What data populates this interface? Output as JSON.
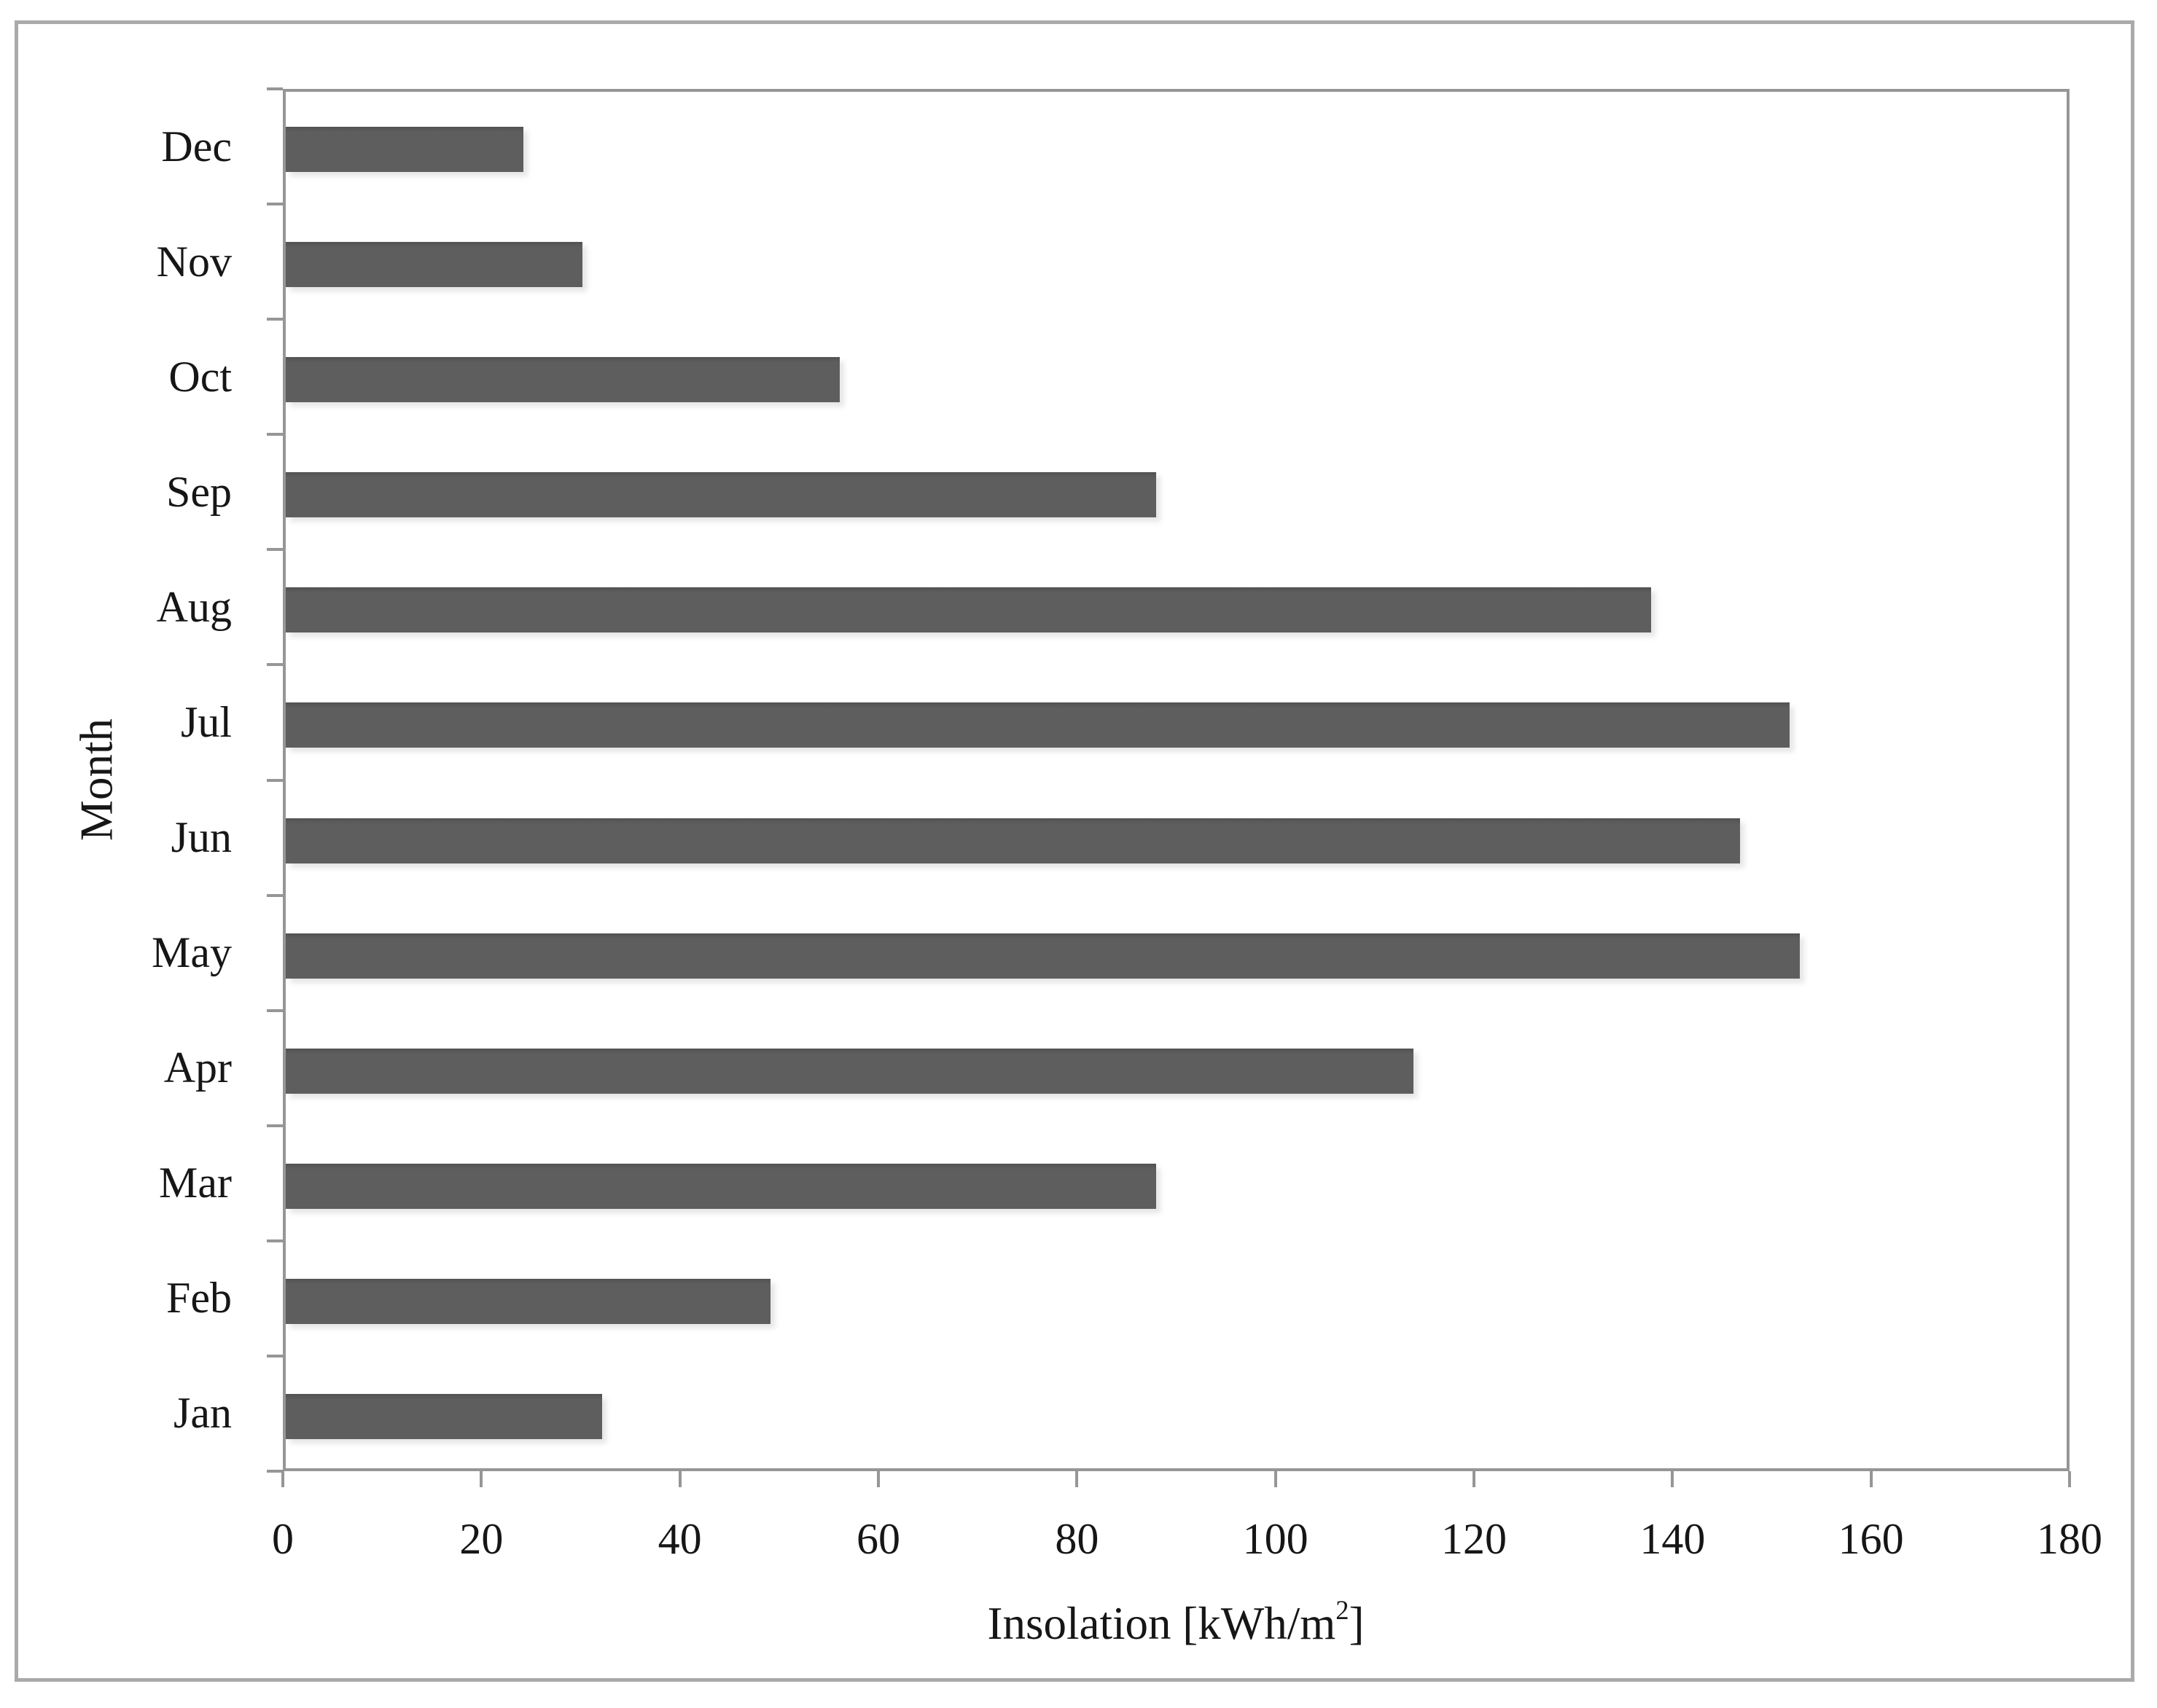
{
  "figure": {
    "background": "#ffffff",
    "border_color": "#aaaaaa"
  },
  "chart_data": {
    "type": "bar",
    "orientation": "horizontal",
    "title": "",
    "categories": [
      "Jan",
      "Feb",
      "Mar",
      "Apr",
      "May",
      "Jun",
      "Jul",
      "Aug",
      "Sep",
      "Oct",
      "Nov",
      "Dec"
    ],
    "values": [
      32,
      49,
      88,
      114,
      153,
      147,
      152,
      138,
      88,
      56,
      30,
      24
    ],
    "row_order_top_to_bottom": [
      "Dec",
      "Nov",
      "Oct",
      "Sep",
      "Aug",
      "Jul",
      "Jun",
      "May",
      "Apr",
      "Mar",
      "Feb",
      "Jan"
    ],
    "xlabel_text": "Insolation [kWh/m",
    "xlabel_sup": "2",
    "xlabel_close": "]",
    "xlabel_full": "Insolation [kWh/m²]",
    "ylabel": "Month",
    "xlim": [
      0,
      180
    ],
    "xticks": [
      0,
      20,
      40,
      60,
      80,
      100,
      120,
      140,
      160,
      180
    ],
    "grid": "off",
    "legend": "none",
    "bar_color": "#5e5e5e",
    "axis_color": "#969696",
    "text_color": "#161616"
  }
}
